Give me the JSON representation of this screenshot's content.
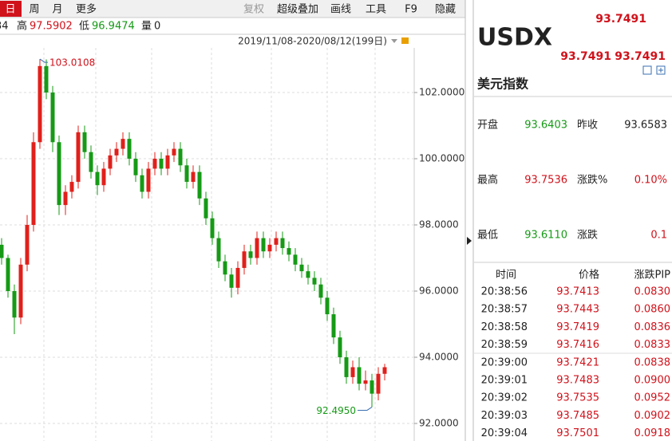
{
  "toolbar": {
    "left": [
      "日",
      "周",
      "月",
      "更多"
    ],
    "right": [
      "复权",
      "超级叠加",
      "画线",
      "工具",
      "F9",
      "隐藏"
    ]
  },
  "info": {
    "partial": "34",
    "high_label": "高",
    "high": "97.5902",
    "low_label": "低",
    "low": "96.9474",
    "vol_label": "量",
    "vol": "0"
  },
  "chart_data": {
    "type": "candlestick",
    "range_label": "2019/11/08-2020/08/12(199日)",
    "up_color": "#e0201b",
    "down_color": "#169a16",
    "ylim": [
      91.47,
      103.35
    ],
    "yticks": [
      {
        "value": 92,
        "label": "92.0000"
      },
      {
        "value": 94,
        "label": "94.0000"
      },
      {
        "value": 96,
        "label": "96.0000"
      },
      {
        "value": 98,
        "label": "98.0000"
      },
      {
        "value": 100,
        "label": "100.0000"
      },
      {
        "value": 102,
        "label": "102.0000"
      }
    ],
    "open": [
      97.4,
      97.0,
      96.0,
      95.2,
      96.8,
      98.0,
      100.5,
      102.8,
      102.0,
      100.5,
      98.6,
      99.0,
      99.3,
      100.8,
      100.2,
      99.6,
      99.2,
      99.7,
      100.1,
      100.3,
      100.6,
      100.0,
      99.5,
      99.0,
      99.7,
      100.0,
      99.7,
      100.1,
      100.3,
      99.8,
      99.3,
      99.6,
      98.8,
      98.2,
      97.6,
      96.9,
      96.5,
      96.1,
      96.7,
      97.2,
      97.0,
      97.6,
      97.2,
      97.4,
      97.6,
      97.3,
      97.1,
      96.8,
      96.6,
      96.4,
      96.2,
      95.8,
      95.3,
      94.6,
      94.0,
      93.4,
      93.7,
      93.2,
      93.3,
      92.9,
      93.5
    ],
    "high": [
      97.6,
      97.1,
      96.2,
      97.0,
      98.3,
      100.8,
      103.0108,
      103.0,
      102.2,
      100.7,
      99.2,
      99.5,
      101.0,
      101.0,
      100.4,
      99.8,
      99.9,
      100.3,
      100.5,
      100.8,
      100.8,
      100.2,
      99.7,
      99.9,
      100.2,
      100.2,
      100.3,
      100.5,
      100.5,
      100.0,
      99.8,
      99.8,
      99.0,
      98.4,
      97.8,
      97.1,
      96.7,
      96.9,
      97.4,
      97.4,
      97.8,
      97.8,
      97.6,
      97.8,
      97.8,
      97.5,
      97.3,
      97.0,
      96.8,
      96.6,
      96.4,
      96.0,
      95.5,
      94.8,
      94.2,
      93.9,
      94.0,
      93.6,
      93.5,
      93.7,
      93.8
    ],
    "low": [
      96.8,
      95.8,
      94.7,
      95.0,
      96.6,
      97.8,
      100.3,
      101.8,
      100.2,
      98.3,
      98.3,
      98.8,
      99.1,
      100.0,
      99.4,
      98.9,
      99.0,
      99.5,
      99.9,
      100.1,
      99.8,
      99.3,
      98.8,
      98.8,
      99.5,
      99.5,
      99.5,
      99.9,
      99.6,
      99.1,
      99.1,
      98.6,
      98.0,
      97.4,
      96.7,
      96.3,
      95.8,
      95.9,
      96.5,
      96.8,
      96.8,
      97.0,
      97.0,
      97.2,
      97.1,
      96.9,
      96.6,
      96.4,
      96.2,
      96.0,
      95.6,
      95.1,
      94.4,
      93.8,
      93.2,
      93.2,
      93.0,
      93.0,
      92.495,
      92.7,
      93.3
    ],
    "close": [
      97.0,
      96.0,
      95.2,
      96.8,
      98.0,
      100.5,
      102.8,
      102.0,
      100.5,
      98.6,
      99.0,
      99.3,
      100.8,
      100.2,
      99.6,
      99.2,
      99.7,
      100.1,
      100.3,
      100.6,
      100.0,
      99.5,
      99.0,
      99.7,
      100.0,
      99.7,
      100.1,
      100.3,
      99.8,
      99.3,
      99.6,
      98.8,
      98.2,
      97.6,
      96.9,
      96.5,
      96.1,
      96.7,
      97.2,
      97.0,
      97.6,
      97.2,
      97.4,
      97.6,
      97.3,
      97.1,
      96.8,
      96.6,
      96.4,
      96.2,
      95.8,
      95.3,
      94.6,
      94.0,
      93.4,
      93.7,
      93.2,
      93.3,
      92.9,
      93.5,
      93.7
    ],
    "annotations": [
      {
        "value": 103.0108,
        "label": "103.0108"
      },
      {
        "value": 92.495,
        "label": "92.4950"
      }
    ]
  },
  "quote": {
    "last": "93.7491",
    "symbol": "USDX",
    "bid": "93.7491",
    "ask": "93.7491",
    "name": "美元指数",
    "stats": [
      [
        "开盘",
        "93.6403",
        "昨收",
        "93.6583"
      ],
      [
        "最高",
        "93.7536",
        "涨跌%",
        "0.10%"
      ],
      [
        "最低",
        "93.6110",
        "涨跌",
        "0.1"
      ]
    ]
  },
  "trades": {
    "header": [
      "时间",
      "价格",
      "涨跌PIP"
    ],
    "rows": [
      [
        "20:38:56",
        "93.7413",
        "0.0830"
      ],
      [
        "20:38:57",
        "93.7443",
        "0.0860"
      ],
      [
        "20:38:58",
        "93.7419",
        "0.0836"
      ],
      [
        "20:38:59",
        "93.7416",
        "0.0833"
      ],
      [
        "20:39:00",
        "93.7421",
        "0.0838"
      ],
      [
        "20:39:01",
        "93.7483",
        "0.0900"
      ],
      [
        "20:39:02",
        "93.7535",
        "0.0952"
      ],
      [
        "20:39:03",
        "93.7485",
        "0.0902"
      ],
      [
        "20:39:04",
        "93.7501",
        "0.0918"
      ]
    ]
  }
}
